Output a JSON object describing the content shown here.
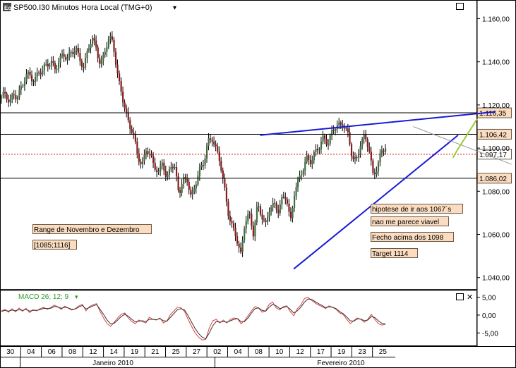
{
  "window": {
    "logo": "Eq",
    "title": "SP500.I30 Minutos Hora Local (TMG+0)",
    "dropdown_glyph": "▾",
    "maximize_glyph": "□",
    "close_glyph": "✕"
  },
  "indicator": {
    "label": "MACD 26; 12; 9",
    "dropdown_glyph": "▾",
    "color": "#2e9a2e"
  },
  "chart_data": [
    {
      "type": "candlestick",
      "title": "SP500.I30 Minutos Hora Local (TMG+0)",
      "ylim": [
        1035,
        1168
      ],
      "y_ticks": [
        "1.160,00",
        "1.140,00",
        "1.120,00",
        "1.100,00",
        "1.080,00",
        "1.060,00",
        "1.040,00"
      ],
      "y_tick_values": [
        1160,
        1140,
        1120,
        1100,
        1080,
        1060,
        1040
      ],
      "x_ticks": [
        "30",
        "04",
        "06",
        "08",
        "12",
        "14",
        "19",
        "21",
        "25",
        "27",
        "02",
        "04",
        "08",
        "10",
        "12",
        "17",
        "19",
        "23",
        "25"
      ],
      "months": [
        "Janeiro 2010",
        "Fevereiro 2010"
      ],
      "path_points": [
        [
          0,
          1123
        ],
        [
          1,
          1124
        ],
        [
          2,
          1122
        ],
        [
          3,
          1126
        ],
        [
          4,
          1124
        ],
        [
          5,
          1128
        ],
        [
          6,
          1133
        ],
        [
          7,
          1134
        ],
        [
          8,
          1132
        ],
        [
          9,
          1136
        ],
        [
          10,
          1135
        ],
        [
          11,
          1138
        ],
        [
          12,
          1140
        ],
        [
          13,
          1138
        ],
        [
          14,
          1141
        ],
        [
          15,
          1143
        ],
        [
          16,
          1140
        ],
        [
          17,
          1145
        ],
        [
          18,
          1147
        ],
        [
          19,
          1142
        ],
        [
          20,
          1136
        ],
        [
          21,
          1146
        ],
        [
          22,
          1150
        ],
        [
          23,
          1148
        ],
        [
          24,
          1138
        ],
        [
          25,
          1145
        ],
        [
          26,
          1149
        ],
        [
          27,
          1150
        ],
        [
          28,
          1135
        ],
        [
          29,
          1128
        ],
        [
          30,
          1116
        ],
        [
          31,
          1110
        ],
        [
          32,
          1105
        ],
        [
          33,
          1098
        ],
        [
          34,
          1092
        ],
        [
          35,
          1100
        ],
        [
          36,
          1095
        ],
        [
          37,
          1092
        ],
        [
          38,
          1088
        ],
        [
          39,
          1096
        ],
        [
          40,
          1084
        ],
        [
          41,
          1092
        ],
        [
          42,
          1089
        ],
        [
          43,
          1080
        ],
        [
          44,
          1086
        ],
        [
          45,
          1086
        ],
        [
          46,
          1075
        ],
        [
          47,
          1083
        ],
        [
          48,
          1090
        ],
        [
          49,
          1095
        ],
        [
          50,
          1103
        ],
        [
          51,
          1104
        ],
        [
          52,
          1098
        ],
        [
          53,
          1094
        ],
        [
          54,
          1082
        ],
        [
          55,
          1070
        ],
        [
          56,
          1062
        ],
        [
          57,
          1057
        ],
        [
          58,
          1050
        ],
        [
          59,
          1068
        ],
        [
          60,
          1070
        ],
        [
          61,
          1060
        ],
        [
          62,
          1072
        ],
        [
          63,
          1069
        ],
        [
          64,
          1065
        ],
        [
          65,
          1074
        ],
        [
          66,
          1073
        ],
        [
          67,
          1070
        ],
        [
          68,
          1076
        ],
        [
          69,
          1079
        ],
        [
          70,
          1066
        ],
        [
          71,
          1080
        ],
        [
          72,
          1084
        ],
        [
          73,
          1090
        ],
        [
          74,
          1096
        ],
        [
          75,
          1095
        ],
        [
          76,
          1098
        ],
        [
          77,
          1100
        ],
        [
          78,
          1104
        ],
        [
          79,
          1103
        ],
        [
          80,
          1108
        ],
        [
          81,
          1111
        ],
        [
          82,
          1109
        ],
        [
          83,
          1110
        ],
        [
          84,
          1106
        ],
        [
          85,
          1097
        ],
        [
          86,
          1094
        ],
        [
          87,
          1102
        ],
        [
          88,
          1104
        ],
        [
          89,
          1101
        ],
        [
          90,
          1088
        ],
        [
          91,
          1092
        ],
        [
          92,
          1097
        ],
        [
          93,
          1100
        ]
      ],
      "x_count": 110,
      "horizontal_levels": [
        {
          "value": 1116.35,
          "label": "1.116,35",
          "style": "solid",
          "color": "#000000",
          "box": "#fbdcc0"
        },
        {
          "value": 1106.42,
          "label": "1.106,42",
          "style": "solid",
          "color": "#000000",
          "box": "#fbdcc0"
        },
        {
          "value": 1097.17,
          "label": "1.097,17",
          "style": "dotted",
          "color": "#cc0000",
          "box": "#ffffff"
        },
        {
          "value": 1086.02,
          "label": "1.086,02",
          "style": "solid",
          "color": "#000000",
          "box": "#fbdcc0"
        }
      ],
      "trendlines": [
        {
          "from": [
            59.5,
            1106
          ],
          "to": [
            114,
            1116.8
          ],
          "color": "#1a1ad6"
        },
        {
          "from": [
            67.3,
            1044
          ],
          "to": [
            105.4,
            1106
          ],
          "color": "#1a1ad6"
        },
        {
          "from": [
            95,
            1110
          ],
          "to": [
            117.8,
            1092.5
          ],
          "color": "#999999"
        },
        {
          "from": [
            104.2,
            1095.5
          ],
          "to": [
            105.2,
            1099
          ],
          "color": "#9acd32"
        },
        {
          "from": [
            105.2,
            1099
          ],
          "to": [
            109.8,
            1113.5
          ],
          "color": "#9acd32"
        }
      ],
      "annotations": [
        "Range de Novembro e Dezembro",
        "[1085;1116]",
        "hipotese de ir aos 1067´s",
        "nao me parece viavel",
        "Fecho acima dos 1098",
        "Target 1114"
      ],
      "colors": {
        "up": "#3f6e3f",
        "down": "#8b1a1a",
        "wick": "#000000",
        "grid": "#000000"
      }
    },
    {
      "type": "line",
      "title": "MACD 26; 12; 9",
      "ylim": [
        -8.5,
        6.5
      ],
      "y_ticks": [
        "5,00",
        "0,00",
        "-5,00"
      ],
      "y_tick_values": [
        5,
        0,
        -5
      ],
      "series": [
        {
          "color": "#e04040",
          "values": [
            1.2,
            1.6,
            0.8,
            1.8,
            0.9,
            2.0,
            1.1,
            1.9,
            0.7,
            1.5,
            1.2,
            1.8,
            2.2,
            1.6,
            2.1,
            2.8,
            2.3,
            1.6,
            2.5,
            1.9,
            1.4,
            1.8,
            2.6,
            3.0,
            1.2,
            2.4,
            2.9,
            3.2,
            1.0,
            -0.8,
            -2.4,
            -3.2,
            -2.0,
            -0.8,
            0.2,
            0.6,
            -0.8,
            -1.8,
            -2.4,
            -1.4,
            -1.8,
            -2.2,
            -0.6,
            -1.2,
            -1.4,
            -0.8,
            -2.2,
            -1.6,
            0.2,
            1.2,
            2.2,
            2.0,
            1.0,
            -1.2,
            -3.2,
            -5.0,
            -6.2,
            -7.0,
            -6.8,
            -3.6,
            -1.6,
            -1.2,
            -2.2,
            -1.4,
            -2.2,
            -1.2,
            -0.8,
            -1.0,
            -2.4,
            -1.6,
            -0.2,
            1.2,
            2.4,
            2.0,
            0.8,
            1.2,
            3.0,
            3.6,
            2.0,
            1.4,
            2.4,
            2.6,
            1.0,
            -0.2,
            1.8,
            2.8,
            4.6,
            5.0,
            4.2,
            3.4,
            2.8,
            2.4,
            1.8,
            2.6,
            2.2,
            1.6,
            0.6,
            0.2,
            -1.2,
            -2.4,
            -1.6,
            -0.8,
            -1.2,
            -2.0,
            -1.2,
            0.2,
            -1.2,
            -2.4,
            -2.8,
            -2.6
          ]
        },
        {
          "color": "#333333",
          "values": [
            1.0,
            1.3,
            1.1,
            1.4,
            1.2,
            1.5,
            1.3,
            1.6,
            1.1,
            1.3,
            1.3,
            1.5,
            1.9,
            1.8,
            1.9,
            2.4,
            2.3,
            1.9,
            2.2,
            2.0,
            1.6,
            1.7,
            2.3,
            2.7,
            1.7,
            2.1,
            2.6,
            2.9,
            1.6,
            0.2,
            -1.4,
            -2.5,
            -2.3,
            -1.4,
            -0.4,
            0.2,
            -0.3,
            -1.2,
            -1.9,
            -1.7,
            -1.6,
            -1.8,
            -1.2,
            -1.2,
            -1.3,
            -1.0,
            -1.6,
            -1.7,
            -0.6,
            0.5,
            1.5,
            1.8,
            1.4,
            -0.2,
            -2.0,
            -3.8,
            -5.2,
            -6.2,
            -6.6,
            -5.0,
            -3.0,
            -1.8,
            -2.0,
            -1.8,
            -2.0,
            -1.6,
            -1.2,
            -1.0,
            -1.8,
            -1.8,
            -0.8,
            0.6,
            1.8,
            2.0,
            1.3,
            1.1,
            2.2,
            3.0,
            2.6,
            1.8,
            2.1,
            2.4,
            1.6,
            0.6,
            1.2,
            2.2,
            3.6,
            4.5,
            4.4,
            3.8,
            3.2,
            2.7,
            2.1,
            2.3,
            2.2,
            1.8,
            1.0,
            0.4,
            -0.5,
            -1.6,
            -1.7,
            -1.1,
            -1.1,
            -1.6,
            -1.4,
            -0.4,
            -0.7,
            -1.6,
            -2.3,
            -2.5
          ]
        }
      ]
    }
  ]
}
